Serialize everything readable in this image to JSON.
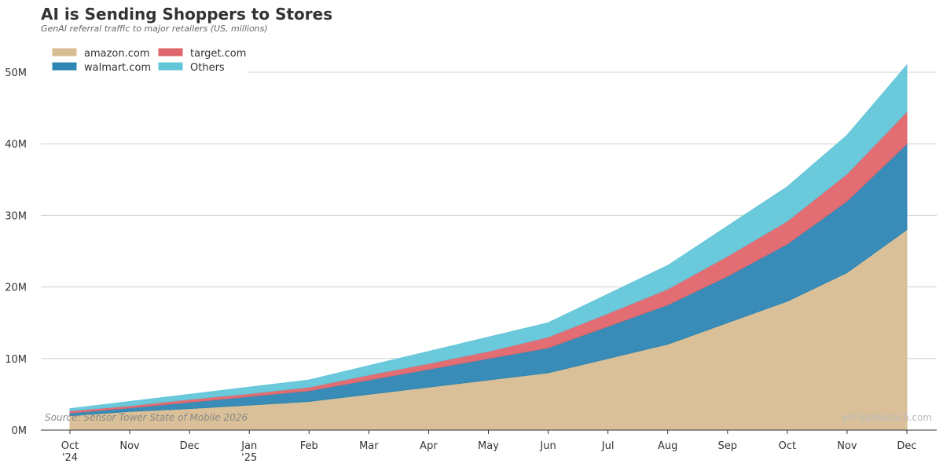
{
  "title": "AI is Sending Shoppers to Stores",
  "subtitle": "GenAI referral traffic to major retailers (US, millions)",
  "source": "Source: Sensor Tower State of Mobile 2026",
  "credit": "philippdubach.com",
  "chart_data": {
    "type": "area",
    "stacked": true,
    "categories": [
      [
        "Oct",
        "'24"
      ],
      [
        "Nov"
      ],
      [
        "Dec"
      ],
      [
        "Jan",
        "'25"
      ],
      [
        "Feb"
      ],
      [
        "Mar"
      ],
      [
        "Apr"
      ],
      [
        "May"
      ],
      [
        "Jun"
      ],
      [
        "Jul"
      ],
      [
        "Aug"
      ],
      [
        "Sep"
      ],
      [
        "Oct"
      ],
      [
        "Nov"
      ],
      [
        "Dec"
      ]
    ],
    "ylim": [
      0,
      55
    ],
    "yticks": [
      0,
      10,
      20,
      30,
      40,
      50
    ],
    "ytick_labels": [
      "0M",
      "10M",
      "20M",
      "30M",
      "40M",
      "50M"
    ],
    "grid": true,
    "legend_placement": "top-left",
    "series": [
      {
        "name": "amazon.com",
        "color": "#d8bd92",
        "values": [
          2,
          2.6,
          3,
          3.5,
          4,
          5,
          6,
          7,
          8,
          10,
          12,
          15,
          18,
          22,
          28
        ]
      },
      {
        "name": "walmart.com",
        "color": "#2e86b3",
        "values": [
          0.4,
          0.5,
          0.9,
          1.2,
          1.5,
          2,
          2.5,
          3,
          3.5,
          4.5,
          5.5,
          6.5,
          8,
          10,
          12
        ]
      },
      {
        "name": "target.com",
        "color": "#e0666d",
        "values": [
          0.3,
          0.3,
          0.4,
          0.4,
          0.5,
          0.7,
          0.8,
          1,
          1.5,
          1.8,
          2.2,
          2.8,
          3.2,
          3.8,
          4.5
        ]
      },
      {
        "name": "Others",
        "color": "#62c6d9",
        "values": [
          0.3,
          0.6,
          0.7,
          0.9,
          1,
          1.3,
          1.7,
          2,
          2,
          2.7,
          3.3,
          4.2,
          4.8,
          5.4,
          6.5
        ]
      }
    ]
  }
}
